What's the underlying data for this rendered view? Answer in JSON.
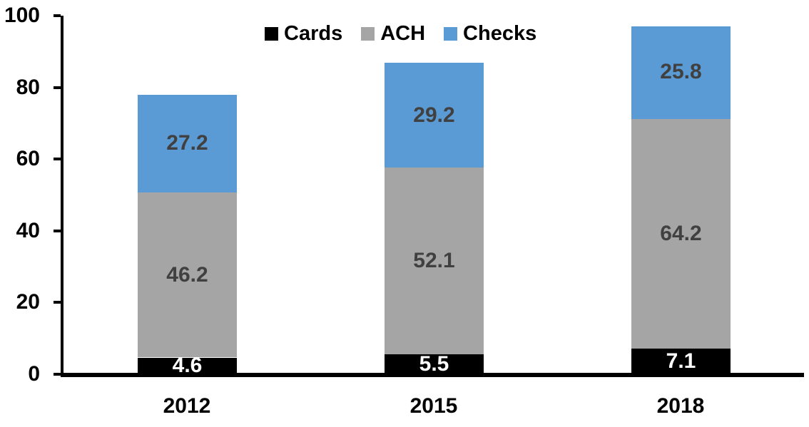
{
  "chart_data": {
    "type": "bar",
    "stacked": true,
    "title": "",
    "xlabel": "",
    "ylabel": "",
    "categories": [
      "2012",
      "2015",
      "2018"
    ],
    "series": [
      {
        "name": "Cards",
        "color": "#000000",
        "label_color": "#ffffff",
        "values": [
          4.6,
          5.5,
          7.1
        ]
      },
      {
        "name": "ACH",
        "color": "#a5a5a5",
        "label_color": "#404040",
        "values": [
          46.2,
          52.1,
          64.2
        ]
      },
      {
        "name": "Checks",
        "color": "#5b9bd5",
        "label_color": "#404040",
        "values": [
          27.2,
          29.2,
          25.8
        ]
      }
    ],
    "totals": [
      78.0,
      86.8,
      97.1
    ],
    "ylim": [
      0,
      100
    ],
    "yticks": [
      0,
      20,
      40,
      60,
      80,
      100
    ],
    "grid": false,
    "legend_position": "top-center",
    "axis_color": "#000000",
    "background_color": "#ffffff"
  }
}
